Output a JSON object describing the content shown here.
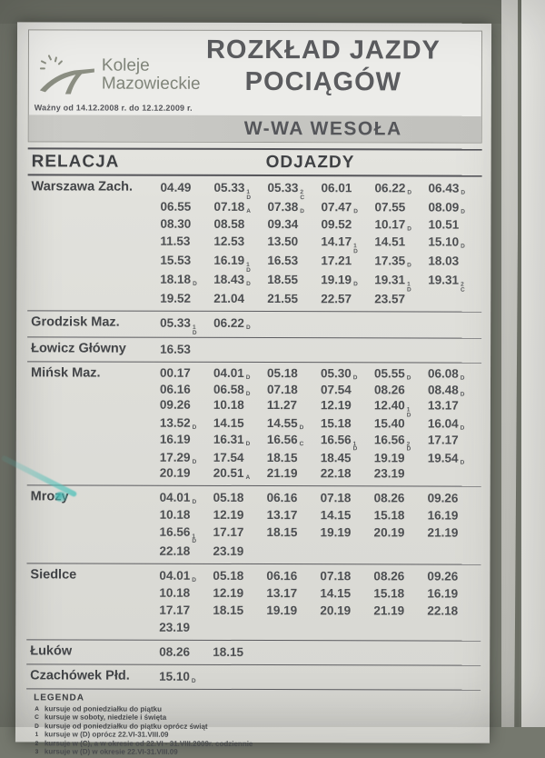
{
  "header": {
    "brand_line1": "Koleje",
    "brand_line2": "Mazowieckie",
    "title_line1": "ROZKŁAD JAZDY",
    "title_line2": "POCIĄGÓW",
    "validity": "Ważny od 14.12.2008 r. do 12.12.2009 r.",
    "station": "W-WA WESOŁA"
  },
  "table": {
    "col_relacja": "RELACJA",
    "col_odjazdy": "ODJAZDY",
    "rows": [
      {
        "name": "Warszawa Zach.",
        "lines": [
          [
            [
              "04.49",
              ""
            ],
            [
              "05.33",
              "1D"
            ],
            [
              "05.33",
              "2C"
            ],
            [
              "06.01",
              ""
            ],
            [
              "06.22",
              "D"
            ],
            [
              "06.43",
              "D"
            ]
          ],
          [
            [
              "06.55",
              ""
            ],
            [
              "07.18",
              "A"
            ],
            [
              "07.38",
              "D"
            ],
            [
              "07.47",
              "D"
            ],
            [
              "07.55",
              ""
            ],
            [
              "08.09",
              "D"
            ]
          ],
          [
            [
              "08.30",
              ""
            ],
            [
              "08.58",
              ""
            ],
            [
              "09.34",
              ""
            ],
            [
              "09.52",
              ""
            ],
            [
              "10.17",
              "D"
            ],
            [
              "10.51",
              ""
            ]
          ],
          [
            [
              "11.53",
              ""
            ],
            [
              "12.53",
              ""
            ],
            [
              "13.50",
              ""
            ],
            [
              "14.17",
              "1D"
            ],
            [
              "14.51",
              ""
            ],
            [
              "15.10",
              "D"
            ]
          ],
          [
            [
              "15.53",
              ""
            ],
            [
              "16.19",
              "1D"
            ],
            [
              "16.53",
              ""
            ],
            [
              "17.21",
              ""
            ],
            [
              "17.35",
              "D"
            ],
            [
              "18.03",
              ""
            ]
          ],
          [
            [
              "18.18",
              "D"
            ],
            [
              "18.43",
              "D"
            ],
            [
              "18.55",
              ""
            ],
            [
              "19.19",
              "D"
            ],
            [
              "19.31",
              "1D"
            ],
            [
              "19.31",
              "2C"
            ]
          ],
          [
            [
              "19.52",
              ""
            ],
            [
              "21.04",
              ""
            ],
            [
              "21.55",
              ""
            ],
            [
              "22.57",
              ""
            ],
            [
              "23.57",
              ""
            ]
          ]
        ]
      },
      {
        "name": "Grodzisk Maz.",
        "lines": [
          [
            [
              "05.33",
              "1D"
            ],
            [
              "06.22",
              "D"
            ]
          ]
        ]
      },
      {
        "name": "Łowicz Główny",
        "lines": [
          [
            [
              "16.53",
              ""
            ]
          ]
        ]
      },
      {
        "name": "Mińsk Maz.",
        "lines": [
          [
            [
              "00.17",
              ""
            ],
            [
              "04.01",
              "D"
            ],
            [
              "05.18",
              ""
            ],
            [
              "05.30",
              "D"
            ],
            [
              "05.55",
              "D"
            ],
            [
              "06.08",
              "D"
            ]
          ],
          [
            [
              "06.16",
              ""
            ],
            [
              "06.58",
              "D"
            ],
            [
              "07.18",
              ""
            ],
            [
              "07.54",
              ""
            ],
            [
              "08.26",
              ""
            ],
            [
              "08.48",
              "D"
            ]
          ],
          [
            [
              "09.26",
              ""
            ],
            [
              "10.18",
              ""
            ],
            [
              "11.27",
              ""
            ],
            [
              "12.19",
              ""
            ],
            [
              "12.40",
              "1D"
            ],
            [
              "13.17",
              ""
            ]
          ],
          [
            [
              "13.52",
              "D"
            ],
            [
              "14.15",
              ""
            ],
            [
              "14.55",
              "D"
            ],
            [
              "15.18",
              ""
            ],
            [
              "15.40",
              ""
            ],
            [
              "16.04",
              "D"
            ]
          ],
          [
            [
              "16.19",
              ""
            ],
            [
              "16.31",
              "D"
            ],
            [
              "16.56",
              "C"
            ],
            [
              "16.56",
              "1D"
            ],
            [
              "16.56",
              "2D"
            ],
            [
              "17.17",
              ""
            ]
          ],
          [
            [
              "17.29",
              "D"
            ],
            [
              "17.54",
              ""
            ],
            [
              "18.15",
              ""
            ],
            [
              "18.45",
              ""
            ],
            [
              "19.19",
              ""
            ],
            [
              "19.54",
              "D"
            ]
          ],
          [
            [
              "20.19",
              ""
            ],
            [
              "20.51",
              "A"
            ],
            [
              "21.19",
              ""
            ],
            [
              "22.18",
              ""
            ],
            [
              "23.19",
              ""
            ]
          ]
        ]
      },
      {
        "name": "Mrozy",
        "lines": [
          [
            [
              "04.01",
              "D"
            ],
            [
              "05.18",
              ""
            ],
            [
              "06.16",
              ""
            ],
            [
              "07.18",
              ""
            ],
            [
              "08.26",
              ""
            ],
            [
              "09.26",
              ""
            ]
          ],
          [
            [
              "10.18",
              ""
            ],
            [
              "12.19",
              ""
            ],
            [
              "13.17",
              ""
            ],
            [
              "14.15",
              ""
            ],
            [
              "15.18",
              ""
            ],
            [
              "16.19",
              ""
            ]
          ],
          [
            [
              "16.56",
              "1D"
            ],
            [
              "17.17",
              ""
            ],
            [
              "18.15",
              ""
            ],
            [
              "19.19",
              ""
            ],
            [
              "20.19",
              ""
            ],
            [
              "21.19",
              ""
            ]
          ],
          [
            [
              "22.18",
              ""
            ],
            [
              "23.19",
              ""
            ]
          ]
        ]
      },
      {
        "name": "Siedlce",
        "lines": [
          [
            [
              "04.01",
              "D"
            ],
            [
              "05.18",
              ""
            ],
            [
              "06.16",
              ""
            ],
            [
              "07.18",
              ""
            ],
            [
              "08.26",
              ""
            ],
            [
              "09.26",
              ""
            ]
          ],
          [
            [
              "10.18",
              ""
            ],
            [
              "12.19",
              ""
            ],
            [
              "13.17",
              ""
            ],
            [
              "14.15",
              ""
            ],
            [
              "15.18",
              ""
            ],
            [
              "16.19",
              ""
            ]
          ],
          [
            [
              "17.17",
              ""
            ],
            [
              "18.15",
              ""
            ],
            [
              "19.19",
              ""
            ],
            [
              "20.19",
              ""
            ],
            [
              "21.19",
              ""
            ],
            [
              "22.18",
              ""
            ]
          ],
          [
            [
              "23.19",
              ""
            ]
          ]
        ]
      },
      {
        "name": "Łuków",
        "lines": [
          [
            [
              "08.26",
              ""
            ],
            [
              "18.15",
              ""
            ]
          ]
        ]
      },
      {
        "name": "Czachówek Płd.",
        "lines": [
          [
            [
              "15.10",
              "D"
            ]
          ]
        ]
      }
    ]
  },
  "legend": {
    "title": "LEGENDA",
    "items": [
      {
        "marker": "A",
        "text": "kursuje od poniedziałku do piątku"
      },
      {
        "marker": "C",
        "text": "kursuje w soboty, niedziele i święta"
      },
      {
        "marker": "D",
        "text": "kursuje od poniedziałku do piątku oprócz świąt"
      },
      {
        "marker": "1",
        "text": "kursuje w (D) oprócz 22.VI-31.VIII.09"
      },
      {
        "marker": "2",
        "text": "kursuje w (C), a w okresie od 22.VI - 31.VIII.2009r. codziennie"
      },
      {
        "marker": "3",
        "text": "kursuje w (D) w okresie 22.VI-31.VIII.09"
      }
    ]
  },
  "colors": {
    "paper": "#e0e0db",
    "ink": "#4a4c4f",
    "frame_gray": "#75786e",
    "paint_streak": "#54c2ba"
  }
}
